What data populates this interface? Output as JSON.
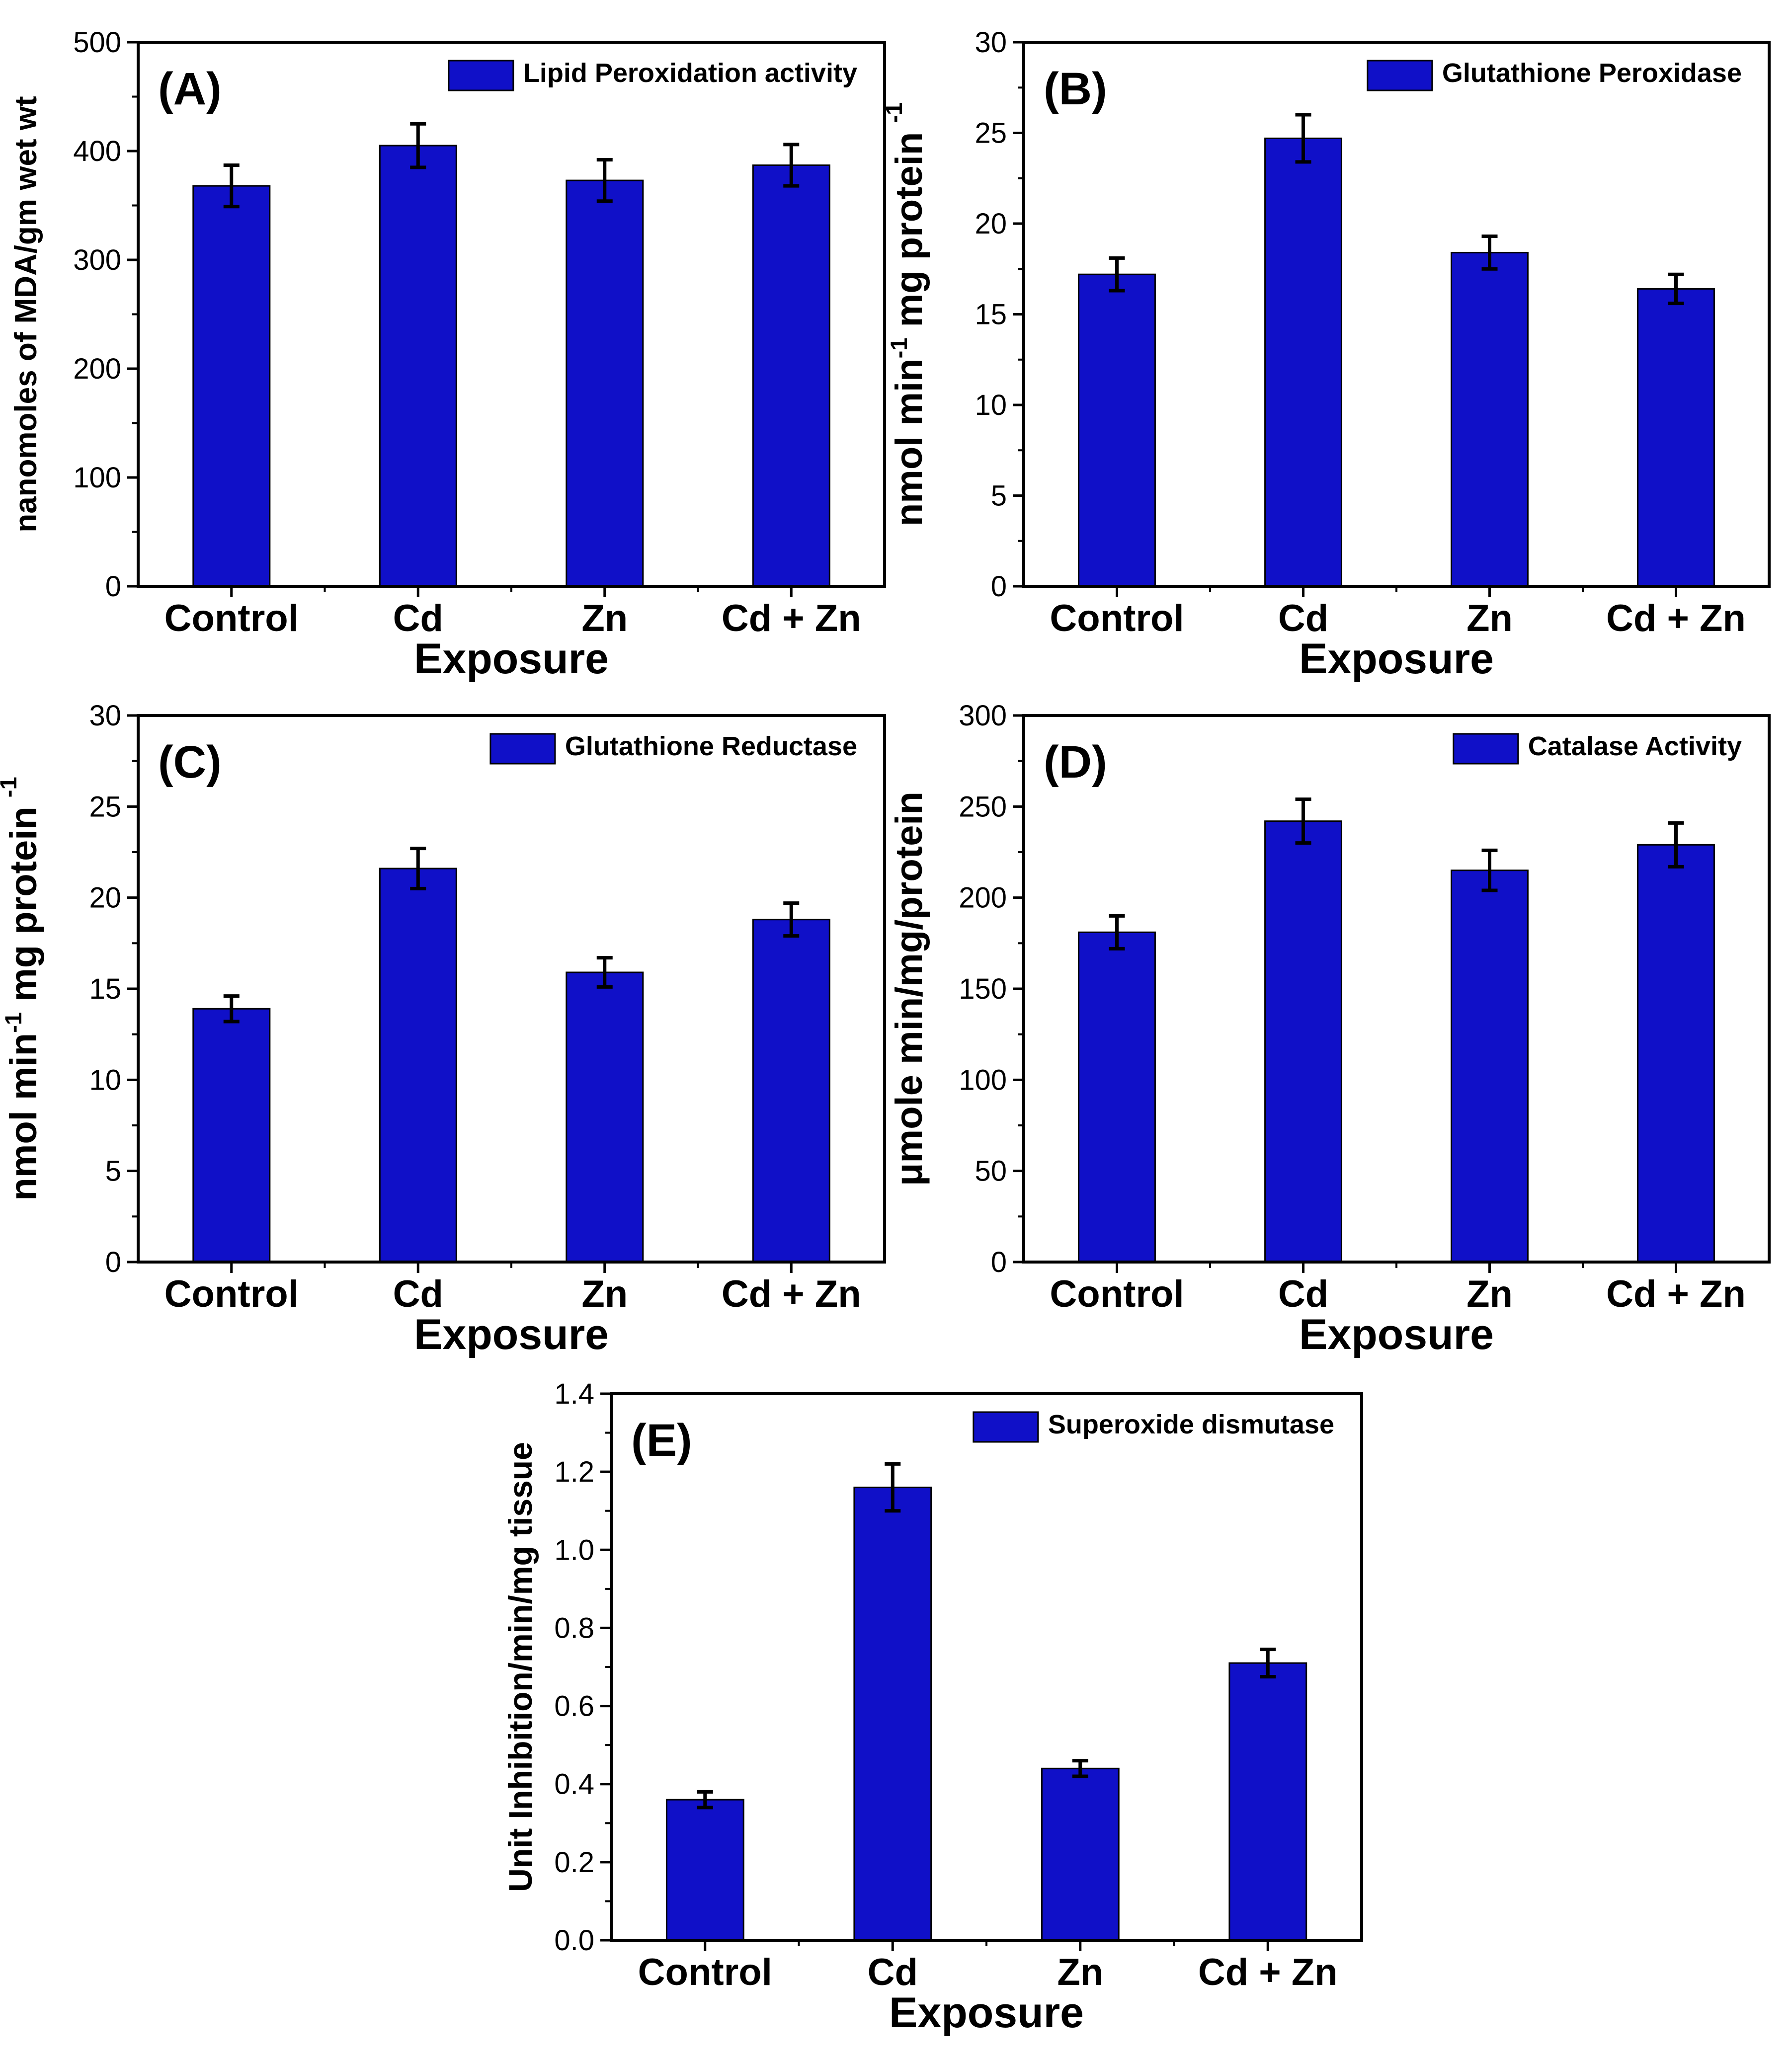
{
  "figure": {
    "xlabel": "Exposure",
    "categories": [
      "Control",
      "Cd",
      "Zn",
      "Cd + Zn"
    ]
  },
  "colors": {
    "bar_fill": "#1010c8",
    "bar_stroke": "#000000",
    "error_bar": "#000000",
    "axis": "#000000",
    "text": "#000000"
  },
  "chart_data": [
    {
      "type": "bar",
      "panel_label": "(A)",
      "legend": "Lipid Peroxidation activity",
      "legend_position": "top-right",
      "title": "",
      "xlabel": "Exposure",
      "ylabel": "nanomoles of MDA/gm wet wt",
      "ylabel_superscript": "",
      "ylabel_tail": "",
      "categories": [
        "Control",
        "Cd",
        "Zn",
        "Cd + Zn"
      ],
      "values": [
        368,
        405,
        373,
        387
      ],
      "errors": [
        19,
        20,
        19,
        19
      ],
      "ylim": [
        0,
        500
      ],
      "yticks": [
        0,
        100,
        200,
        300,
        400,
        500
      ],
      "ytick_labels": [
        "0",
        "100",
        "200",
        "300",
        "400",
        "500"
      ]
    },
    {
      "type": "bar",
      "panel_label": "(B)",
      "legend": "Glutathione Peroxidase",
      "legend_position": "top-right",
      "title": "",
      "xlabel": "Exposure",
      "ylabel": "nmol min",
      "ylabel_superscript": "-1",
      "ylabel_tail": " mg protein",
      "ylabel_tail_superscript": "-1",
      "categories": [
        "Control",
        "Cd",
        "Zn",
        "Cd + Zn"
      ],
      "values": [
        17.2,
        24.7,
        18.4,
        16.4
      ],
      "errors": [
        0.9,
        1.3,
        0.9,
        0.8
      ],
      "ylim": [
        0,
        30
      ],
      "yticks": [
        0,
        5,
        10,
        15,
        20,
        25,
        30
      ],
      "ytick_labels": [
        "0",
        "5",
        "10",
        "15",
        "20",
        "25",
        "30"
      ]
    },
    {
      "type": "bar",
      "panel_label": "(C)",
      "legend": "Glutathione Reductase",
      "legend_position": "top-right",
      "title": "",
      "xlabel": "Exposure",
      "ylabel": "nmol min",
      "ylabel_superscript": "-1",
      "ylabel_tail": " mg protein",
      "ylabel_tail_superscript": "-1",
      "categories": [
        "Control",
        "Cd",
        "Zn",
        "Cd + Zn"
      ],
      "values": [
        13.9,
        21.6,
        15.9,
        18.8
      ],
      "errors": [
        0.7,
        1.1,
        0.8,
        0.9
      ],
      "ylim": [
        0,
        30
      ],
      "yticks": [
        0,
        5,
        10,
        15,
        20,
        25,
        30
      ],
      "ytick_labels": [
        "0",
        "5",
        "10",
        "15",
        "20",
        "25",
        "30"
      ]
    },
    {
      "type": "bar",
      "panel_label": "(D)",
      "legend": "Catalase Activity",
      "legend_position": "top-right",
      "title": "",
      "xlabel": "Exposure",
      "ylabel": "μmole min/mg/protein",
      "ylabel_superscript": "",
      "ylabel_tail": "",
      "categories": [
        "Control",
        "Cd",
        "Zn",
        "Cd + Zn"
      ],
      "values": [
        181,
        242,
        215,
        229
      ],
      "errors": [
        9,
        12,
        11,
        12
      ],
      "ylim": [
        0,
        300
      ],
      "yticks": [
        0,
        50,
        100,
        150,
        200,
        250,
        300
      ],
      "ytick_labels": [
        "0",
        "50",
        "100",
        "150",
        "200",
        "250",
        "300"
      ]
    },
    {
      "type": "bar",
      "panel_label": "(E)",
      "legend": "Superoxide dismutase",
      "legend_position": "top-right",
      "title": "",
      "xlabel": "Exposure",
      "ylabel": "Unit Inhibition/min/mg tissue",
      "ylabel_superscript": "",
      "ylabel_tail": "",
      "categories": [
        "Control",
        "Cd",
        "Zn",
        "Cd + Zn"
      ],
      "values": [
        0.36,
        1.16,
        0.44,
        0.71
      ],
      "errors": [
        0.02,
        0.06,
        0.02,
        0.035
      ],
      "ylim": [
        0,
        1.4
      ],
      "yticks": [
        0,
        0.2,
        0.4,
        0.6,
        0.8,
        1.0,
        1.2,
        1.4
      ],
      "ytick_labels": [
        "0.0",
        "0.2",
        "0.4",
        "0.6",
        "0.8",
        "1.0",
        "1.2",
        "1.4"
      ]
    }
  ]
}
